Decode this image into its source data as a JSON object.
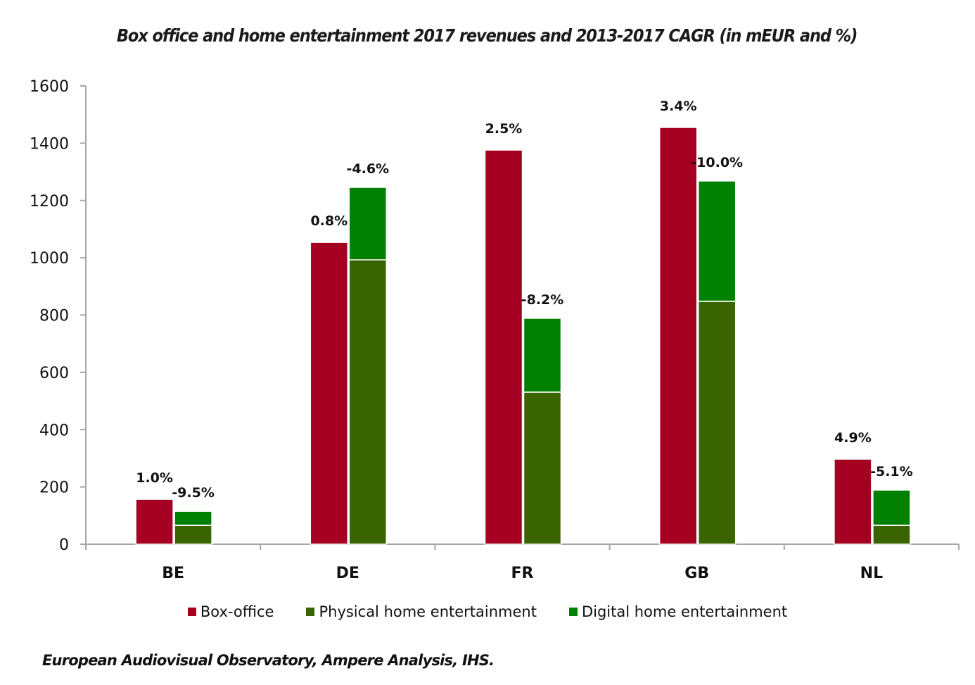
{
  "chart_data": {
    "type": "bar",
    "title": "Box office and home entertainment 2017 revenues and 2013-2017 CAGR (in mEUR and %)",
    "xlabel": "",
    "ylabel": "",
    "ylim": [
      0,
      1600
    ],
    "yticks": [
      0,
      200,
      400,
      600,
      800,
      1000,
      1200,
      1400,
      1600
    ],
    "ytick_labels": [
      "0",
      "200",
      "400",
      "600",
      "800",
      "1000",
      "1200",
      "1400",
      "1600"
    ],
    "grid": false,
    "categories": [
      "BE",
      "DE",
      "FR",
      "GB",
      "NL"
    ],
    "series": [
      {
        "name": "Box-office",
        "color": "#a50021",
        "stack": "box",
        "values": [
          157,
          1054,
          1376,
          1455,
          297
        ]
      },
      {
        "name": "Physical home entertainment",
        "color": "#3a6400",
        "stack": "home",
        "values": [
          66,
          993,
          531,
          848,
          66
        ]
      },
      {
        "name": "Digital home entertainment",
        "color": "#008000",
        "stack": "home",
        "values": [
          49,
          253,
          258,
          420,
          123
        ]
      }
    ],
    "cagr_labels": {
      "box": [
        "1.0%",
        "0.8%",
        "2.5%",
        "3.4%",
        "4.9%"
      ],
      "home": [
        "-9.5%",
        "-4.6%",
        "-8.2%",
        "-10.0%",
        "-5.1%"
      ]
    },
    "legend": {
      "position": "bottom",
      "entries": [
        "Box-office",
        "Physical home entertainment",
        "Digital home entertainment"
      ]
    },
    "source": "European Audiovisual Observatory, Ampere Analysis, IHS."
  }
}
